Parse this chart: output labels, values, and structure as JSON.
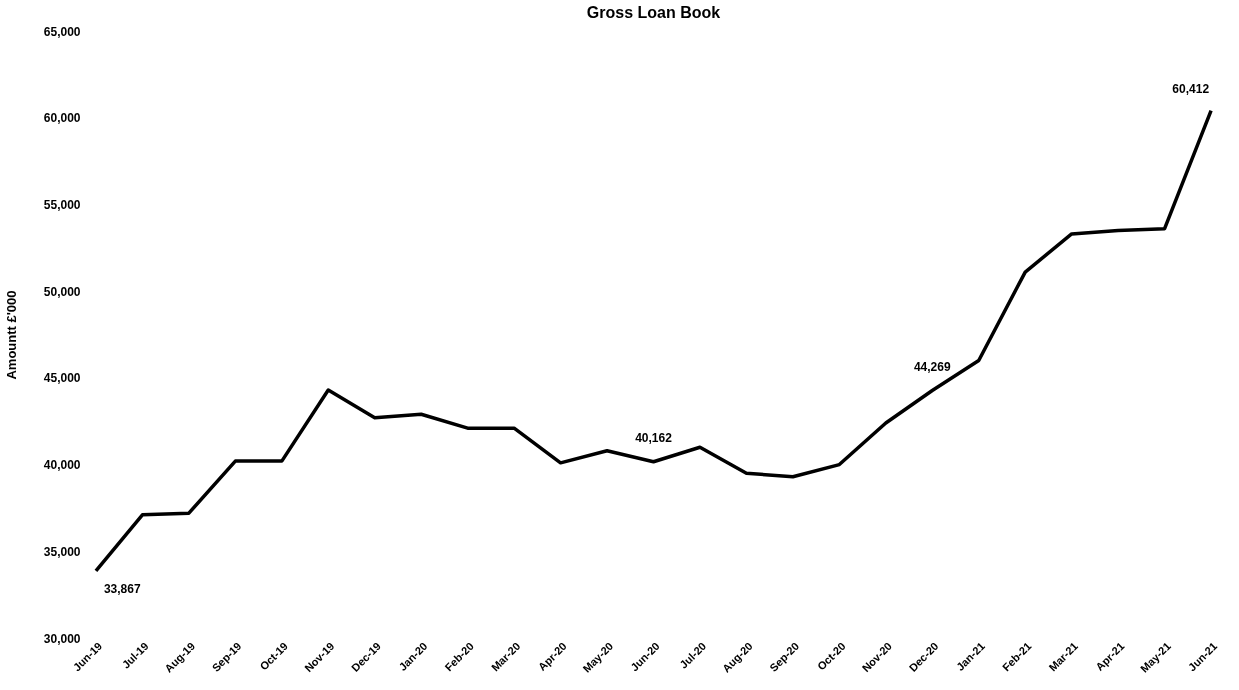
{
  "chart_data": {
    "type": "line",
    "title": "Gross Loan Book",
    "ylabel": "Amountt £'000",
    "categories": [
      "Jun-19",
      "Jul-19",
      "Aug-19",
      "Sep-19",
      "Oct-19",
      "Nov-19",
      "Dec-19",
      "Jan-20",
      "Feb-20",
      "Mar-20",
      "Apr-20",
      "May-20",
      "Jun-20",
      "Jul-20",
      "Aug-20",
      "Sep-20",
      "Oct-20",
      "Nov-20",
      "Dec-20",
      "Jan-21",
      "Feb-21",
      "Mar-21",
      "Apr-21",
      "May-21",
      "Jun-21"
    ],
    "series": [
      {
        "color": "#000000",
        "values": [
          33867,
          37100,
          37200,
          40200,
          40200,
          44300,
          42700,
          42900,
          42100,
          42100,
          40100,
          40800,
          40162,
          41000,
          39500,
          39300,
          40000,
          42400,
          44269,
          46000,
          51100,
          53300,
          53500,
          53600,
          60412
        ]
      }
    ],
    "ylim": [
      30000,
      65000
    ],
    "yticks": [
      {
        "value": 30000,
        "label": "30,000"
      },
      {
        "value": 35000,
        "label": "35,000"
      },
      {
        "value": 40000,
        "label": "40,000"
      },
      {
        "value": 45000,
        "label": "45,000"
      },
      {
        "value": 50000,
        "label": "50,000"
      },
      {
        "value": 55000,
        "label": "55,000"
      },
      {
        "value": 60000,
        "label": "60,000"
      },
      {
        "value": 65000,
        "label": "65,000"
      }
    ],
    "grid": false,
    "legend": false,
    "marker": "none",
    "line_style": "solid",
    "annotations": [
      {
        "text": "33,867",
        "x": "Jun-19",
        "y": 33867
      },
      {
        "text": "40,162",
        "x": "Jun-20",
        "y": 40162
      },
      {
        "text": "44,269",
        "x": "Dec-20",
        "y": 44269
      },
      {
        "text": "60,412",
        "x": "Jun-21",
        "y": 60412
      }
    ]
  }
}
